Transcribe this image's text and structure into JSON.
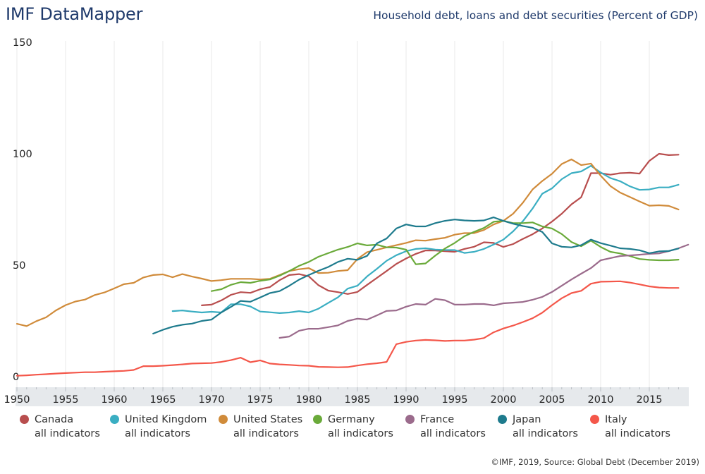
{
  "header": {
    "brand": "IMF DataMapper",
    "title": "Household debt, loans and debt securities (Percent of GDP)"
  },
  "source": "©IMF, 2019, Source: Global Debt (December 2019)",
  "chart_data": {
    "type": "line",
    "title": "Household debt, loans and debt securities (Percent of GDP)",
    "xlabel": "",
    "ylabel": "",
    "xlim": [
      1950,
      2018
    ],
    "ylim": [
      0,
      150
    ],
    "x_ticks": [
      1950,
      1955,
      1960,
      1965,
      1970,
      1975,
      1980,
      1985,
      1990,
      1995,
      2000,
      2005,
      2010,
      2015
    ],
    "y_ticks": [
      0,
      50,
      100,
      150
    ],
    "grid": "vertical",
    "legend_position": "bottom",
    "series": [
      {
        "name": "Canada",
        "sublabel": "all indicators",
        "color": "#b84e4e",
        "start": 1969,
        "values": [
          32.0,
          32.3,
          34.2,
          36.7,
          37.9,
          37.6,
          39.2,
          40.2,
          43.3,
          45.6,
          46.0,
          45.0,
          41.0,
          38.6,
          37.9,
          37.1,
          38.0,
          41.2,
          44.3,
          47.4,
          50.6,
          53.0,
          55.1,
          56.6,
          56.6,
          56.3,
          56.0,
          57.3,
          58.3,
          60.3,
          60.0,
          58.2,
          59.5,
          61.8,
          63.9,
          66.5,
          69.6,
          73.1,
          77.3,
          80.5,
          91.3,
          91.3,
          90.6,
          91.3,
          91.5,
          91.1,
          96.8,
          100.0,
          99.4,
          99.6
        ]
      },
      {
        "name": "United Kingdom",
        "sublabel": "all indicators",
        "color": "#3aaec2",
        "start": 1966,
        "values": [
          29.4,
          29.7,
          29.2,
          28.8,
          29.1,
          28.8,
          32.5,
          32.5,
          31.5,
          29.2,
          28.9,
          28.5,
          28.8,
          29.4,
          28.8,
          30.5,
          33.1,
          35.6,
          39.5,
          40.8,
          45.0,
          48.4,
          52.0,
          54.5,
          56.3,
          57.3,
          57.6,
          57.0,
          56.8,
          56.8,
          55.5,
          56.0,
          57.3,
          59.3,
          61.5,
          65.2,
          69.7,
          75.4,
          82.1,
          84.5,
          88.6,
          91.3,
          92.1,
          94.6,
          91.6,
          89.1,
          87.7,
          85.4,
          83.8,
          84.0,
          84.9,
          84.9,
          86.1
        ]
      },
      {
        "name": "United States",
        "sublabel": "all indicators",
        "color": "#d08b3a",
        "start": 1950,
        "values": [
          23.7,
          22.7,
          24.9,
          26.6,
          29.7,
          32.1,
          33.7,
          34.6,
          36.6,
          37.8,
          39.6,
          41.5,
          42.1,
          44.5,
          45.6,
          45.9,
          44.6,
          46.0,
          44.9,
          44.0,
          42.9,
          43.3,
          43.9,
          43.9,
          43.9,
          43.6,
          43.9,
          45.6,
          47.4,
          48.2,
          48.7,
          46.5,
          46.6,
          47.4,
          47.8,
          52.8,
          55.9,
          56.9,
          58.0,
          59.0,
          60.0,
          61.2,
          61.0,
          61.7,
          62.3,
          63.7,
          64.4,
          64.4,
          65.8,
          68.3,
          69.9,
          73.1,
          78.0,
          84.0,
          87.8,
          91.0,
          95.4,
          97.5,
          94.9,
          95.6,
          90.2,
          85.5,
          82.6,
          80.6,
          78.6,
          76.7,
          76.9,
          76.6,
          75.0
        ]
      },
      {
        "name": "Germany",
        "sublabel": "all indicators",
        "color": "#6aaa3a",
        "start": 1970,
        "values": [
          38.4,
          39.2,
          41.2,
          42.4,
          42.1,
          43.0,
          43.6,
          45.3,
          47.4,
          49.7,
          51.5,
          53.8,
          55.4,
          57.0,
          58.2,
          59.8,
          58.9,
          59.2,
          58.0,
          57.9,
          57.0,
          50.4,
          50.8,
          54.3,
          57.5,
          60.0,
          63.0,
          65.0,
          66.7,
          69.5,
          69.9,
          68.9,
          68.9,
          69.2,
          67.4,
          66.5,
          64.0,
          60.4,
          58.5,
          61.0,
          58.2,
          56.0,
          55.3,
          54.1,
          52.8,
          52.4,
          52.2,
          52.2,
          52.5
        ]
      },
      {
        "name": "France",
        "sublabel": "all indicators",
        "color": "#9b6b8c",
        "start": 1977,
        "values": [
          17.4,
          18.0,
          20.6,
          21.5,
          21.5,
          22.2,
          23.0,
          25.0,
          26.0,
          25.6,
          27.5,
          29.5,
          29.7,
          31.4,
          32.6,
          32.3,
          34.9,
          34.3,
          32.3,
          32.3,
          32.6,
          32.6,
          32.0,
          32.9,
          33.2,
          33.5,
          34.5,
          35.8,
          38.0,
          40.8,
          43.6,
          46.2,
          48.7,
          52.2,
          53.2,
          54.1,
          54.4,
          54.7,
          55.1,
          55.3,
          56.3,
          57.6,
          59.2
        ]
      },
      {
        "name": "Japan",
        "sublabel": "all indicators",
        "color": "#1e7b8d",
        "start": 1964,
        "values": [
          19.3,
          21.0,
          22.4,
          23.3,
          23.8,
          25.0,
          25.6,
          28.8,
          31.3,
          34.0,
          33.6,
          35.5,
          37.5,
          38.4,
          40.8,
          43.5,
          45.6,
          47.5,
          49.2,
          51.5,
          52.9,
          52.4,
          54.2,
          59.8,
          62.0,
          66.5,
          68.3,
          67.4,
          67.4,
          68.9,
          69.9,
          70.5,
          70.1,
          69.9,
          70.1,
          71.5,
          69.9,
          68.6,
          67.6,
          66.8,
          64.9,
          59.8,
          58.3,
          58.0,
          59.0,
          61.5,
          59.9,
          58.8,
          57.6,
          57.3,
          56.7,
          55.4,
          56.2,
          56.4,
          57.5
        ]
      },
      {
        "name": "Italy",
        "sublabel": "all indicators",
        "color": "#f4574a",
        "start": 1950,
        "values": [
          0.4,
          0.6,
          0.9,
          1.1,
          1.4,
          1.6,
          1.8,
          2.0,
          2.0,
          2.2,
          2.4,
          2.6,
          3.0,
          4.7,
          4.7,
          4.9,
          5.2,
          5.5,
          5.9,
          6.0,
          6.1,
          6.6,
          7.4,
          8.5,
          6.5,
          7.3,
          5.9,
          5.5,
          5.3,
          5.0,
          4.9,
          4.4,
          4.3,
          4.2,
          4.3,
          5.0,
          5.6,
          6.0,
          6.6,
          14.6,
          15.6,
          16.2,
          16.5,
          16.3,
          16.0,
          16.2,
          16.2,
          16.6,
          17.3,
          19.9,
          21.6,
          22.9,
          24.5,
          26.2,
          28.7,
          32.1,
          35.2,
          37.5,
          38.5,
          41.7,
          42.6,
          42.7,
          42.8,
          42.2,
          41.4,
          40.5,
          40.0,
          39.8,
          39.8
        ]
      }
    ]
  },
  "legend": [
    {
      "name": "Canada",
      "sublabel": "all indicators"
    },
    {
      "name": "United Kingdom",
      "sublabel": "all indicators"
    },
    {
      "name": "United States",
      "sublabel": "all indicators"
    },
    {
      "name": "Germany",
      "sublabel": "all indicators"
    },
    {
      "name": "France",
      "sublabel": "all indicators"
    },
    {
      "name": "Japan",
      "sublabel": "all indicators"
    },
    {
      "name": "Italy",
      "sublabel": "all indicators"
    }
  ]
}
